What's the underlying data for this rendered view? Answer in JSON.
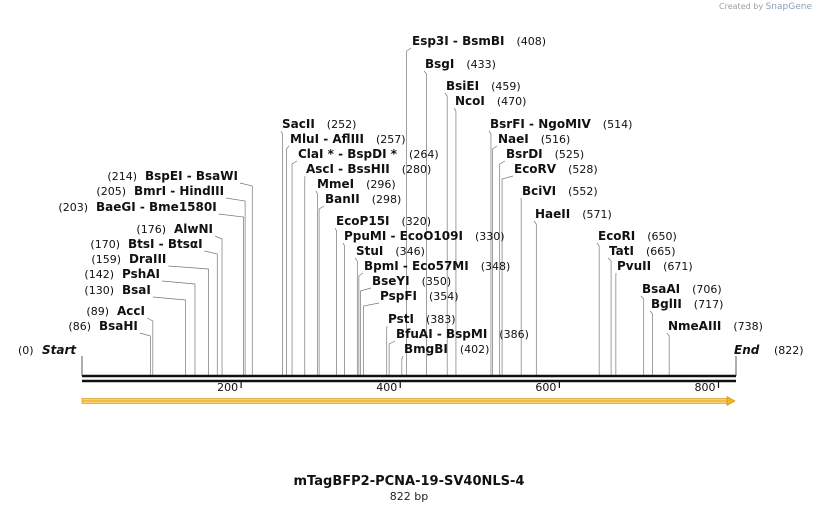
{
  "credit": {
    "created_by": "Created by",
    "brand": "SnapGene"
  },
  "sequence": {
    "name": "mTagBFP2-PCNA-19-SV40NLS-4",
    "length_label": "822 bp",
    "length": 822
  },
  "ends": {
    "start_pos": "(0)",
    "start_label": "Start",
    "end_label": "End",
    "end_pos": "(822)"
  },
  "ruler_ticks": [
    "200",
    "400",
    "600",
    "800"
  ],
  "feature": {
    "color": "#f0b429",
    "start": 0,
    "end": 822,
    "direction": "forward"
  },
  "sites": [
    {
      "name": "AccI",
      "pos": 89
    },
    {
      "name": "BsaHI",
      "pos": 86
    },
    {
      "name": "BsaI",
      "pos": 130
    },
    {
      "name": "PshAI",
      "pos": 142
    },
    {
      "name": "DraIII",
      "pos": 159
    },
    {
      "name": "BtsI - BtsαI",
      "pos": 170
    },
    {
      "name": "AlwNI",
      "pos": 176
    },
    {
      "name": "BaeGI - Bme1580I",
      "pos": 203
    },
    {
      "name": "BmrI - HindIII",
      "pos": 205
    },
    {
      "name": "BspEI - BsaWI",
      "pos": 214
    },
    {
      "name": "SacII",
      "pos": 252
    },
    {
      "name": "MluI - AflIII",
      "pos": 257
    },
    {
      "name": "ClaI * - BspDI *",
      "pos": 264
    },
    {
      "name": "AscI - BssHII",
      "pos": 280
    },
    {
      "name": "MmeI",
      "pos": 296
    },
    {
      "name": "BanII",
      "pos": 298
    },
    {
      "name": "EcoP15I",
      "pos": 320
    },
    {
      "name": "PpuMI - EcoO109I",
      "pos": 330
    },
    {
      "name": "StuI",
      "pos": 346
    },
    {
      "name": "BpmI - Eco57MI",
      "pos": 348
    },
    {
      "name": "BseYI",
      "pos": 350
    },
    {
      "name": "PspFI",
      "pos": 354
    },
    {
      "name": "PstI",
      "pos": 383
    },
    {
      "name": "BfuAI - BspMI",
      "pos": 386
    },
    {
      "name": "BmgBI",
      "pos": 402
    },
    {
      "name": "Esp3I - BsmBI",
      "pos": 408
    },
    {
      "name": "BsgI",
      "pos": 433
    },
    {
      "name": "BsiEI",
      "pos": 459
    },
    {
      "name": "NcoI",
      "pos": 470
    },
    {
      "name": "BsrFI - NgoMIV",
      "pos": 514
    },
    {
      "name": "NaeI",
      "pos": 516
    },
    {
      "name": "BsrDI",
      "pos": 525
    },
    {
      "name": "EcoRV",
      "pos": 528
    },
    {
      "name": "BciVI",
      "pos": 552
    },
    {
      "name": "HaeII",
      "pos": 571
    },
    {
      "name": "EcoRI",
      "pos": 650
    },
    {
      "name": "TatI",
      "pos": 665
    },
    {
      "name": "PvuII",
      "pos": 671
    },
    {
      "name": "BsaAI",
      "pos": 706
    },
    {
      "name": "BglII",
      "pos": 717
    },
    {
      "name": "NmeAIII",
      "pos": 738
    }
  ]
}
